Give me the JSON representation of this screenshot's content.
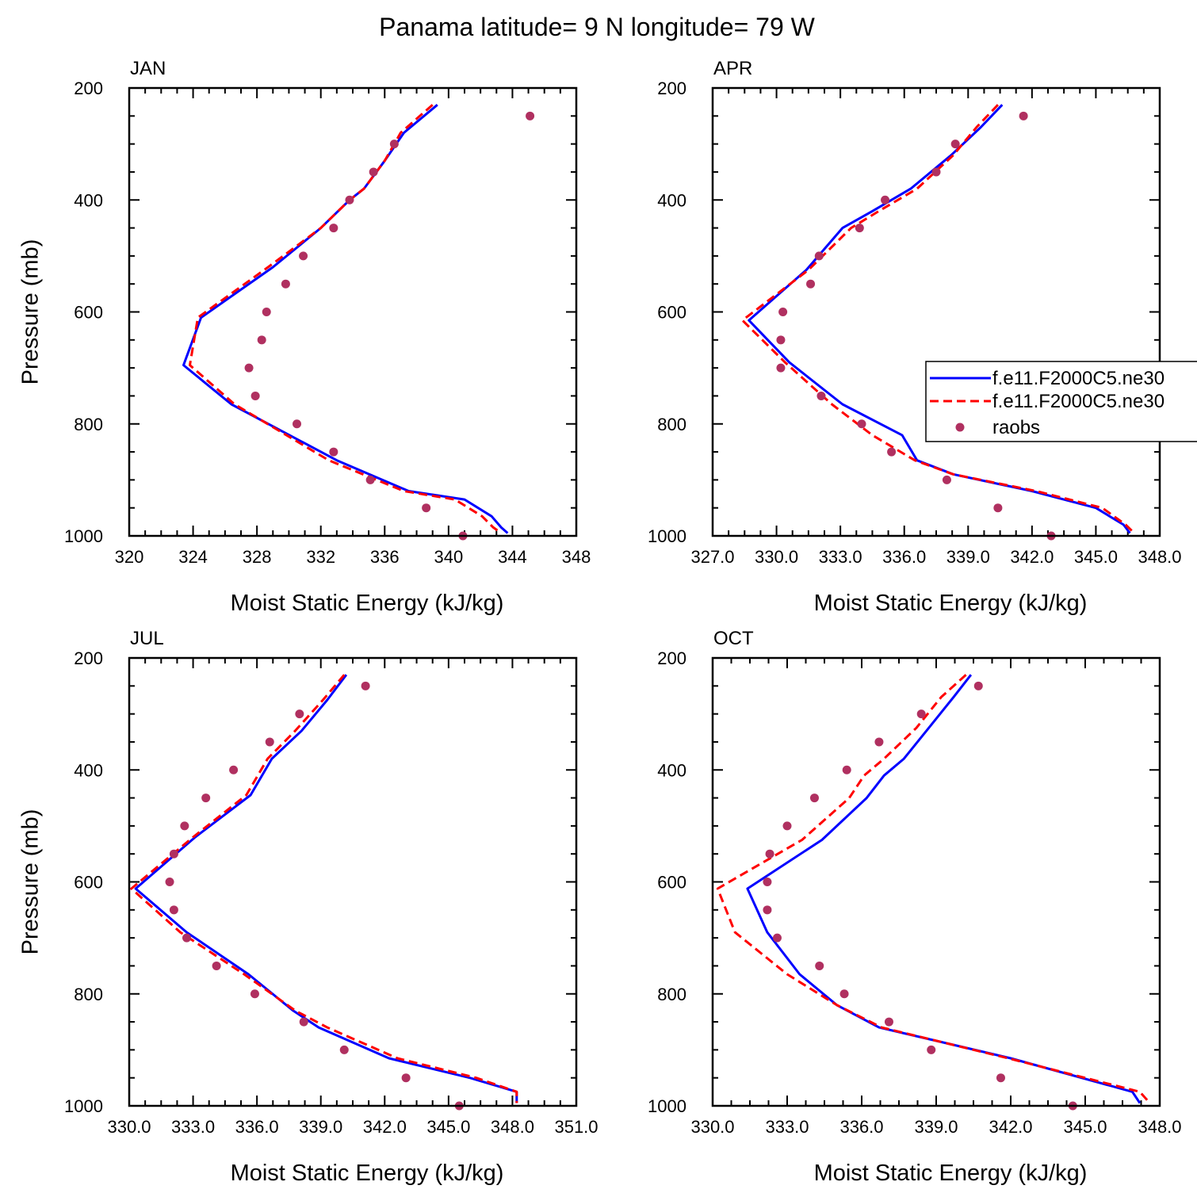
{
  "figure": {
    "title": "Panama  latitude= 9 N longitude= 79 W"
  },
  "legend": {
    "entries": [
      {
        "label": "f.e11.F2000C5.ne30",
        "color": "#0000ff",
        "style": "solid"
      },
      {
        "label": "f.e11.F2000C5.ne30",
        "color": "#ff0000",
        "style": "dashed"
      },
      {
        "label": "raobs",
        "color": "#b03060",
        "style": "marker"
      }
    ]
  },
  "colors": {
    "model1": "#0000ff",
    "model2": "#ff0000",
    "obs": "#b03060"
  },
  "chart_data": [
    {
      "type": "line",
      "title": "JAN",
      "xlabel": "Moist Static Energy (kJ/kg)",
      "ylabel": "Pressure (mb)",
      "xlim": [
        320,
        348
      ],
      "ylim": [
        200,
        1000
      ],
      "y_inverted": true,
      "xticks": [
        320,
        324,
        328,
        332,
        336,
        340,
        344,
        348
      ],
      "xtick_labels": [
        "320",
        "324",
        "328",
        "332",
        "336",
        "340",
        "344",
        "348"
      ],
      "yticks": [
        200,
        400,
        600,
        800,
        1000
      ],
      "ytick_labels": [
        "200",
        "400",
        "600",
        "800",
        "1000"
      ],
      "series": [
        {
          "name": "f.e11.F2000C5.ne30",
          "kind": "solid",
          "x": [
            339.3,
            337.2,
            336.0,
            334.7,
            333.8,
            332.0,
            329.0,
            324.5,
            323.4,
            326.4,
            333.0,
            337.5,
            341.0,
            342.7,
            343.3,
            343.7
          ],
          "y": [
            230,
            280,
            330,
            380,
            400,
            450,
            520,
            610,
            695,
            765,
            865,
            920,
            935,
            965,
            985,
            995
          ]
        },
        {
          "name": "f.e11.F2000C5.ne30",
          "kind": "dashed",
          "x": [
            339.0,
            337.0,
            336.0,
            334.7,
            333.8,
            332.0,
            328.7,
            324.3,
            323.8,
            326.6,
            332.5,
            337.2,
            340.4,
            342.1,
            342.8,
            343.3
          ],
          "y": [
            230,
            280,
            330,
            380,
            400,
            450,
            520,
            610,
            695,
            765,
            865,
            920,
            935,
            965,
            985,
            995
          ]
        },
        {
          "name": "raobs",
          "kind": "marker",
          "x": [
            345.1,
            336.6,
            335.3,
            333.8,
            332.8,
            330.9,
            329.8,
            328.6,
            328.3,
            327.5,
            327.9,
            330.5,
            332.8,
            335.1,
            338.6,
            340.9
          ],
          "y": [
            250,
            300,
            350,
            400,
            450,
            500,
            550,
            600,
            650,
            700,
            750,
            800,
            850,
            900,
            950,
            1000
          ]
        }
      ]
    },
    {
      "type": "line",
      "title": "APR",
      "xlabel": "Moist Static Energy (kJ/kg)",
      "ylabel": "",
      "xlim": [
        327,
        348
      ],
      "ylim": [
        200,
        1000
      ],
      "y_inverted": true,
      "xticks": [
        327,
        330,
        333,
        336,
        339,
        342,
        345,
        348
      ],
      "xtick_labels": [
        "327.0",
        "330.0",
        "333.0",
        "336.0",
        "339.0",
        "342.0",
        "345.0",
        "348.0"
      ],
      "yticks": [
        200,
        400,
        600,
        800,
        1000
      ],
      "ytick_labels": [
        "200",
        "400",
        "600",
        "800",
        "1000"
      ],
      "series": [
        {
          "name": "f.e11.F2000C5.ne30",
          "kind": "solid",
          "x": [
            340.6,
            339.6,
            338.2,
            336.3,
            334.5,
            333.1,
            331.4,
            328.7,
            330.6,
            333.1,
            335.9,
            336.6,
            338.3,
            342.0,
            345.0,
            346.3,
            346.6
          ],
          "y": [
            230,
            270,
            320,
            380,
            420,
            450,
            525,
            615,
            690,
            765,
            820,
            865,
            890,
            920,
            950,
            980,
            995
          ]
        },
        {
          "name": "f.e11.F2000C5.ne30",
          "kind": "dashed",
          "x": [
            340.4,
            339.4,
            338.3,
            336.6,
            334.8,
            333.5,
            331.5,
            328.4,
            330.4,
            332.6,
            334.5,
            336.5,
            338.3,
            342.2,
            345.3,
            346.4,
            346.8
          ],
          "y": [
            230,
            270,
            320,
            380,
            420,
            450,
            525,
            615,
            690,
            765,
            820,
            865,
            890,
            920,
            950,
            980,
            995
          ]
        },
        {
          "name": "raobs",
          "kind": "marker",
          "x": [
            341.6,
            338.4,
            337.5,
            335.1,
            333.9,
            332.0,
            331.6,
            330.3,
            330.2,
            330.2,
            332.1,
            334.0,
            335.4,
            338.0,
            340.4,
            342.9
          ],
          "y": [
            250,
            300,
            350,
            400,
            450,
            500,
            550,
            600,
            650,
            700,
            750,
            800,
            850,
            900,
            950,
            1000
          ]
        }
      ]
    },
    {
      "type": "line",
      "title": "JUL",
      "xlabel": "Moist Static Energy (kJ/kg)",
      "ylabel": "Pressure (mb)",
      "xlim": [
        330,
        351
      ],
      "ylim": [
        200,
        1000
      ],
      "y_inverted": true,
      "xticks": [
        330,
        333,
        336,
        339,
        342,
        345,
        348,
        351
      ],
      "xtick_labels": [
        "330.0",
        "333.0",
        "336.0",
        "339.0",
        "342.0",
        "345.0",
        "348.0",
        "351.0"
      ],
      "yticks": [
        200,
        400,
        600,
        800,
        1000
      ],
      "ytick_labels": [
        "200",
        "400",
        "600",
        "800",
        "1000"
      ],
      "series": [
        {
          "name": "f.e11.F2000C5.ne30",
          "kind": "solid",
          "x": [
            340.2,
            339.3,
            338.1,
            336.7,
            335.7,
            333.1,
            330.3,
            332.7,
            335.6,
            337.7,
            338.9,
            342.2,
            346.0,
            348.2,
            348.2
          ],
          "y": [
            230,
            275,
            330,
            380,
            445,
            520,
            612,
            690,
            765,
            830,
            860,
            915,
            950,
            975,
            995
          ]
        },
        {
          "name": "f.e11.F2000C5.ne30",
          "kind": "dashed",
          "x": [
            340.1,
            339.1,
            337.8,
            336.5,
            335.5,
            333.0,
            330.1,
            332.4,
            335.4,
            337.8,
            339.3,
            342.6,
            346.3,
            348.2,
            348.2
          ],
          "y": [
            230,
            275,
            330,
            380,
            445,
            520,
            612,
            690,
            765,
            830,
            860,
            915,
            950,
            975,
            995
          ]
        },
        {
          "name": "raobs",
          "kind": "marker",
          "x": [
            341.1,
            338.0,
            336.6,
            334.9,
            333.6,
            332.6,
            332.1,
            331.9,
            332.1,
            332.7,
            334.1,
            335.9,
            338.2,
            340.1,
            343.0,
            345.5
          ],
          "y": [
            250,
            300,
            350,
            400,
            450,
            500,
            550,
            600,
            650,
            700,
            750,
            800,
            850,
            900,
            950,
            1000
          ]
        }
      ]
    },
    {
      "type": "line",
      "title": "OCT",
      "xlabel": "Moist Static Energy (kJ/kg)",
      "ylabel": "",
      "xlim": [
        330,
        348
      ],
      "ylim": [
        200,
        1000
      ],
      "y_inverted": true,
      "xticks": [
        330,
        333,
        336,
        339,
        342,
        345,
        348
      ],
      "xtick_labels": [
        "330.0",
        "333.0",
        "336.0",
        "339.0",
        "342.0",
        "345.0",
        "348.0"
      ],
      "yticks": [
        200,
        400,
        600,
        800,
        1000
      ],
      "ytick_labels": [
        "200",
        "400",
        "600",
        "800",
        "1000"
      ],
      "series": [
        {
          "name": "f.e11.F2000C5.ne30",
          "kind": "solid",
          "x": [
            340.4,
            339.7,
            338.7,
            337.7,
            336.9,
            336.2,
            334.4,
            331.4,
            332.2,
            333.5,
            335.0,
            336.7,
            342.0,
            346.9,
            347.2
          ],
          "y": [
            230,
            270,
            325,
            380,
            410,
            450,
            525,
            612,
            690,
            765,
            820,
            860,
            915,
            975,
            995
          ]
        },
        {
          "name": "f.e11.F2000C5.ne30",
          "kind": "dashed",
          "x": [
            340.2,
            339.2,
            338.2,
            336.9,
            336.1,
            335.5,
            333.6,
            330.2,
            330.9,
            333.0,
            335.0,
            336.8,
            341.9,
            347.2,
            347.6
          ],
          "y": [
            230,
            270,
            325,
            380,
            410,
            450,
            525,
            612,
            690,
            765,
            820,
            860,
            915,
            975,
            995
          ]
        },
        {
          "name": "raobs",
          "kind": "marker",
          "x": [
            340.7,
            338.4,
            336.7,
            335.4,
            334.1,
            333.0,
            332.3,
            332.2,
            332.2,
            332.6,
            334.3,
            335.3,
            337.1,
            338.8,
            341.6,
            344.5
          ],
          "y": [
            250,
            300,
            350,
            400,
            450,
            500,
            550,
            600,
            650,
            700,
            750,
            800,
            850,
            900,
            950,
            1000
          ]
        }
      ]
    }
  ]
}
